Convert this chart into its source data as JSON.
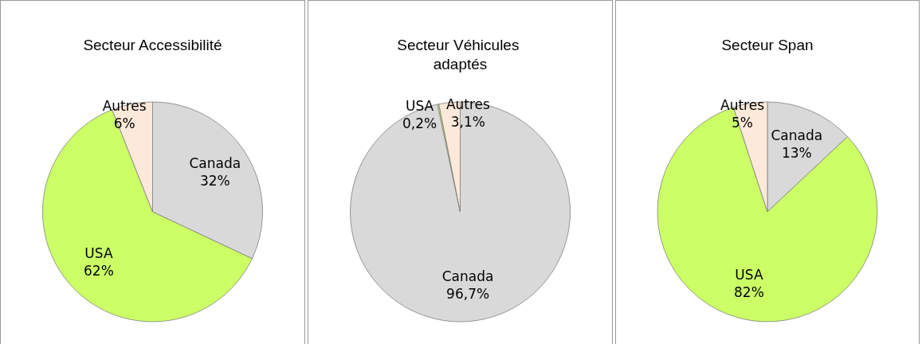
{
  "chart_data": [
    {
      "type": "pie",
      "title": "Secteur Accessibilité",
      "categories": [
        "Canada",
        "USA",
        "Autres"
      ],
      "values": [
        32,
        62,
        6
      ],
      "value_labels": [
        "32%",
        "62%",
        "6%"
      ],
      "colors": [
        "#d9d9d9",
        "#ccff66",
        "#fde9d9"
      ]
    },
    {
      "type": "pie",
      "title": "Secteur Véhicules adaptés",
      "categories": [
        "Canada",
        "USA",
        "Autres"
      ],
      "values": [
        96.7,
        0.2,
        3.1
      ],
      "value_labels": [
        "96,7%",
        "0,2%",
        "3,1%"
      ],
      "colors": [
        "#d9d9d9",
        "#ccff66",
        "#fde9d9"
      ]
    },
    {
      "type": "pie",
      "title": "Secteur Span",
      "categories": [
        "Canada",
        "USA",
        "Autres"
      ],
      "values": [
        13,
        82,
        5
      ],
      "value_labels": [
        "13%",
        "82%",
        "5%"
      ],
      "colors": [
        "#d9d9d9",
        "#ccff66",
        "#fde9d9"
      ]
    }
  ]
}
